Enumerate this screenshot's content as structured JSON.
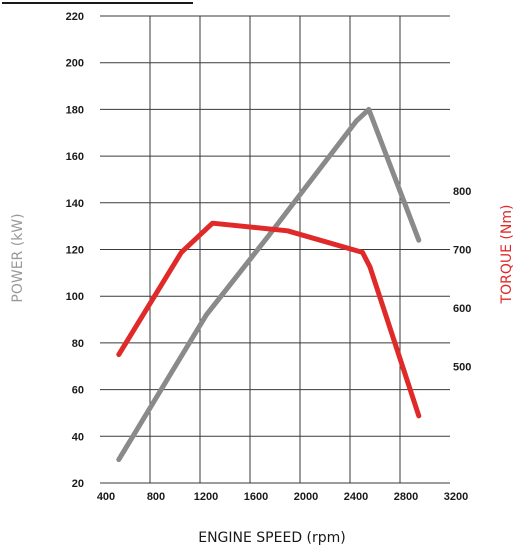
{
  "chart_data": {
    "type": "line",
    "xlabel": "ENGINE SPEED (rpm)",
    "ylabel_left": "POWER (kW)",
    "ylabel_right": "TORQUE (Nm)",
    "xlim": [
      400,
      3200
    ],
    "x_ticks": [
      400,
      800,
      1200,
      1600,
      2000,
      2400,
      2800,
      3200
    ],
    "ylim_left": [
      20,
      220
    ],
    "y_ticks_left": [
      20,
      40,
      60,
      80,
      100,
      120,
      140,
      160,
      180,
      200,
      220
    ],
    "ylim_right": [
      300,
      1100
    ],
    "y_ticks_right": [
      500,
      600,
      700,
      800
    ],
    "grid": true,
    "series": [
      {
        "name": "POWER (kW)",
        "axis": "left",
        "color": "#8a8a8a",
        "points": [
          {
            "x": 550,
            "y": 30
          },
          {
            "x": 1250,
            "y": 92
          },
          {
            "x": 1750,
            "y": 126
          },
          {
            "x": 2450,
            "y": 175
          },
          {
            "x": 2550,
            "y": 180
          },
          {
            "x": 2950,
            "y": 124
          }
        ]
      },
      {
        "name": "TORQUE (Nm)",
        "axis": "right",
        "color": "#e02a2a",
        "points": [
          {
            "x": 550,
            "y": 520
          },
          {
            "x": 1050,
            "y": 695
          },
          {
            "x": 1300,
            "y": 745
          },
          {
            "x": 1900,
            "y": 732
          },
          {
            "x": 2500,
            "y": 695
          },
          {
            "x": 2560,
            "y": 670
          },
          {
            "x": 2950,
            "y": 415
          }
        ]
      }
    ]
  }
}
